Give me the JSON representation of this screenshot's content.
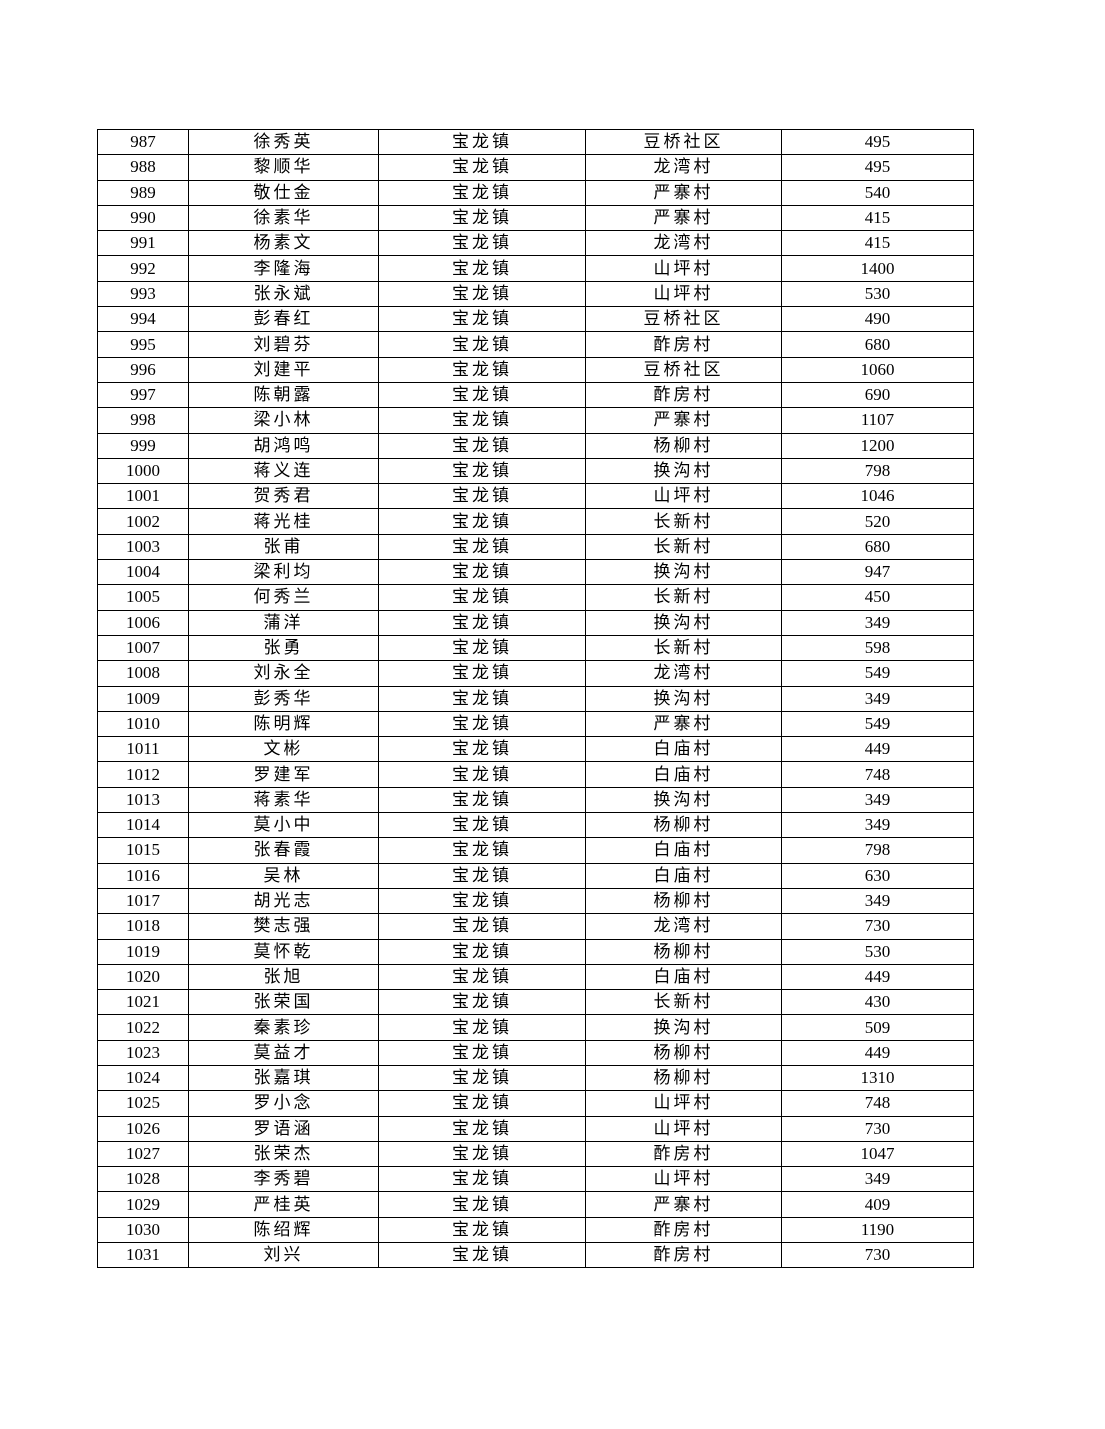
{
  "table": {
    "rows": [
      [
        "987",
        "徐秀英",
        "宝龙镇",
        "豆桥社区",
        "495"
      ],
      [
        "988",
        "黎顺华",
        "宝龙镇",
        "龙湾村",
        "495"
      ],
      [
        "989",
        "敬仕金",
        "宝龙镇",
        "严寨村",
        "540"
      ],
      [
        "990",
        "徐素华",
        "宝龙镇",
        "严寨村",
        "415"
      ],
      [
        "991",
        "杨素文",
        "宝龙镇",
        "龙湾村",
        "415"
      ],
      [
        "992",
        "李隆海",
        "宝龙镇",
        "山坪村",
        "1400"
      ],
      [
        "993",
        "张永斌",
        "宝龙镇",
        "山坪村",
        "530"
      ],
      [
        "994",
        "彭春红",
        "宝龙镇",
        "豆桥社区",
        "490"
      ],
      [
        "995",
        "刘碧芬",
        "宝龙镇",
        "酢房村",
        "680"
      ],
      [
        "996",
        "刘建平",
        "宝龙镇",
        "豆桥社区",
        "1060"
      ],
      [
        "997",
        "陈朝露",
        "宝龙镇",
        "酢房村",
        "690"
      ],
      [
        "998",
        "梁小林",
        "宝龙镇",
        "严寨村",
        "1107"
      ],
      [
        "999",
        "胡鸿鸣",
        "宝龙镇",
        "杨柳村",
        "1200"
      ],
      [
        "1000",
        "蒋义连",
        "宝龙镇",
        "换沟村",
        "798"
      ],
      [
        "1001",
        "贺秀君",
        "宝龙镇",
        "山坪村",
        "1046"
      ],
      [
        "1002",
        "蒋光桂",
        "宝龙镇",
        "长新村",
        "520"
      ],
      [
        "1003",
        "张甫",
        "宝龙镇",
        "长新村",
        "680"
      ],
      [
        "1004",
        "梁利均",
        "宝龙镇",
        "换沟村",
        "947"
      ],
      [
        "1005",
        "何秀兰",
        "宝龙镇",
        "长新村",
        "450"
      ],
      [
        "1006",
        "蒲洋",
        "宝龙镇",
        "换沟村",
        "349"
      ],
      [
        "1007",
        "张勇",
        "宝龙镇",
        "长新村",
        "598"
      ],
      [
        "1008",
        "刘永全",
        "宝龙镇",
        "龙湾村",
        "549"
      ],
      [
        "1009",
        "彭秀华",
        "宝龙镇",
        "换沟村",
        "349"
      ],
      [
        "1010",
        "陈明辉",
        "宝龙镇",
        "严寨村",
        "549"
      ],
      [
        "1011",
        "文彬",
        "宝龙镇",
        "白庙村",
        "449"
      ],
      [
        "1012",
        "罗建军",
        "宝龙镇",
        "白庙村",
        "748"
      ],
      [
        "1013",
        "蒋素华",
        "宝龙镇",
        "换沟村",
        "349"
      ],
      [
        "1014",
        "莫小中",
        "宝龙镇",
        "杨柳村",
        "349"
      ],
      [
        "1015",
        "张春霞",
        "宝龙镇",
        "白庙村",
        "798"
      ],
      [
        "1016",
        "吴林",
        "宝龙镇",
        "白庙村",
        "630"
      ],
      [
        "1017",
        "胡光志",
        "宝龙镇",
        "杨柳村",
        "349"
      ],
      [
        "1018",
        "樊志强",
        "宝龙镇",
        "龙湾村",
        "730"
      ],
      [
        "1019",
        "莫怀乾",
        "宝龙镇",
        "杨柳村",
        "530"
      ],
      [
        "1020",
        "张旭",
        "宝龙镇",
        "白庙村",
        "449"
      ],
      [
        "1021",
        "张荣国",
        "宝龙镇",
        "长新村",
        "430"
      ],
      [
        "1022",
        "秦素珍",
        "宝龙镇",
        "换沟村",
        "509"
      ],
      [
        "1023",
        "莫益才",
        "宝龙镇",
        "杨柳村",
        "449"
      ],
      [
        "1024",
        "张嘉琪",
        "宝龙镇",
        "杨柳村",
        "1310"
      ],
      [
        "1025",
        "罗小念",
        "宝龙镇",
        "山坪村",
        "748"
      ],
      [
        "1026",
        "罗语涵",
        "宝龙镇",
        "山坪村",
        "730"
      ],
      [
        "1027",
        "张荣杰",
        "宝龙镇",
        "酢房村",
        "1047"
      ],
      [
        "1028",
        "李秀碧",
        "宝龙镇",
        "山坪村",
        "349"
      ],
      [
        "1029",
        "严桂英",
        "宝龙镇",
        "严寨村",
        "409"
      ],
      [
        "1030",
        "陈绍辉",
        "宝龙镇",
        "酢房村",
        "1190"
      ],
      [
        "1031",
        "刘兴",
        "宝龙镇",
        "酢房村",
        "730"
      ]
    ]
  }
}
